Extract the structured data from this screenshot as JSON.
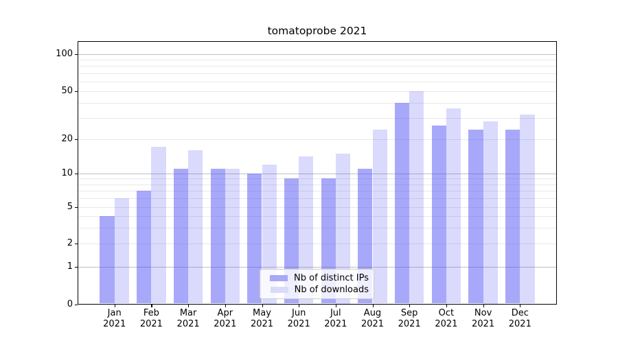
{
  "title": "tomatoprobe 2021",
  "legend": {
    "items": [
      {
        "label": "Nb of distinct IPs",
        "color": "#a8a8f7"
      },
      {
        "label": "Nb of downloads",
        "color": "#dadaf9"
      }
    ]
  },
  "chart_data": {
    "type": "bar",
    "title": "tomatoprobe 2021",
    "categories": [
      "Jan 2021",
      "Feb 2021",
      "Mar 2021",
      "Apr 2021",
      "May 2021",
      "Jun 2021",
      "Jul 2021",
      "Aug 2021",
      "Sep 2021",
      "Oct 2021",
      "Nov 2021",
      "Dec 2021"
    ],
    "series": [
      {
        "name": "Nb of distinct IPs",
        "color_solid": "#a8a8f7",
        "color_rgba": "rgba(70,70,245,0.47)",
        "values": [
          4,
          7,
          11,
          11,
          10,
          9,
          9,
          11,
          40,
          26,
          24,
          24
        ]
      },
      {
        "name": "Nb of downloads",
        "color_solid": "#dadaf9",
        "color_rgba": "rgba(70,70,245,0.20)",
        "values": [
          6,
          17,
          16,
          11,
          12,
          14,
          15,
          24,
          50,
          36,
          28,
          32
        ]
      }
    ],
    "yscale": "symlog",
    "ylim": [
      0,
      128
    ],
    "ytick_labels": [
      "0",
      "1",
      "2",
      "5",
      "10",
      "20",
      "50",
      "100"
    ],
    "ytick_values": [
      0,
      1,
      2,
      5,
      10,
      20,
      50,
      100
    ],
    "minor_grid_values": [
      2,
      3,
      4,
      5,
      6,
      7,
      8,
      9,
      20,
      30,
      40,
      50,
      60,
      70,
      80,
      90
    ],
    "major_grid_values": [
      1,
      10,
      100
    ],
    "grid": "both",
    "legend_position": "lower center",
    "xlabel": "",
    "ylabel": ""
  }
}
